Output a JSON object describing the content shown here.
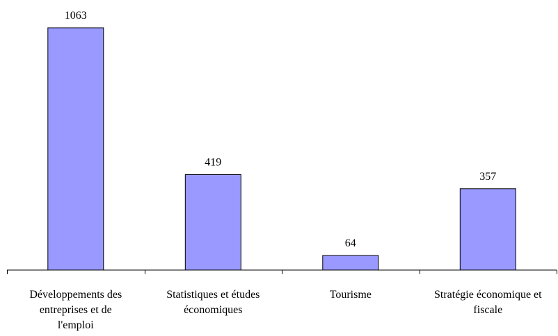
{
  "chart_data": {
    "type": "bar",
    "categories": [
      "Développements des entreprises et de l'emploi",
      "Statistiques et études économiques",
      "Tourisme",
      "Stratégie économique et fiscale"
    ],
    "category_label_lines": [
      [
        "Développements des",
        "entreprises et de",
        "l'emploi"
      ],
      [
        "Statistiques et études",
        "économiques"
      ],
      [
        "Tourisme"
      ],
      [
        "Stratégie économique et",
        "fiscale"
      ]
    ],
    "values": [
      1063,
      419,
      64,
      357
    ],
    "data_labels": [
      "1063",
      "419",
      "64",
      "357"
    ],
    "ylim": [
      0,
      1063
    ],
    "grid": false,
    "legend": "none",
    "bar_color": "#9999ff",
    "bar_border_color": "#000000"
  }
}
